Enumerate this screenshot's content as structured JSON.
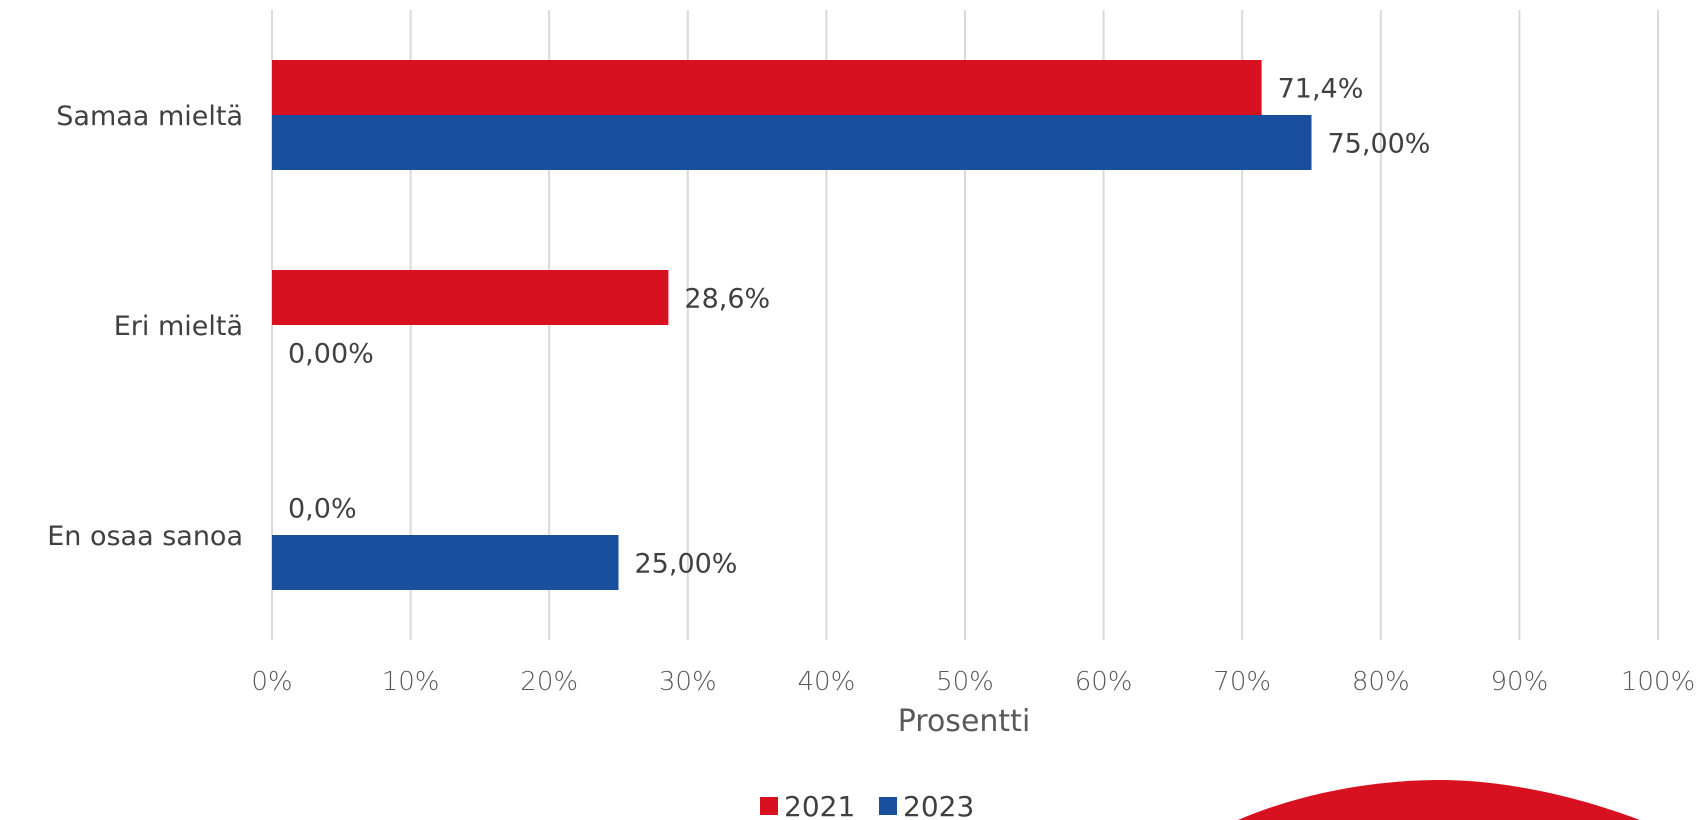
{
  "chart_data": {
    "type": "bar",
    "orientation": "horizontal",
    "categories": [
      "Samaa mieltä",
      "Eri mieltä",
      "En osaa sanoa"
    ],
    "series": [
      {
        "name": "2021",
        "values": [
          71.4,
          28.6,
          0.0
        ],
        "labels": [
          "71,4%",
          "28,6%",
          "0,0%"
        ],
        "color": "#d7111f"
      },
      {
        "name": "2023",
        "values": [
          75.0,
          0.0,
          25.0
        ],
        "labels": [
          "75,00%",
          "0,00%",
          "25,00%"
        ],
        "color": "#1a4f9e"
      }
    ],
    "xlim": [
      0,
      100
    ],
    "xticks": [
      "0%",
      "10%",
      "20%",
      "30%",
      "40%",
      "50%",
      "60%",
      "70%",
      "80%",
      "90%",
      "100%"
    ],
    "xlabel": "Prosentti",
    "ylabel": "",
    "grid": true,
    "legend_position": "bottom",
    "decoration_color": "#d7111f"
  }
}
